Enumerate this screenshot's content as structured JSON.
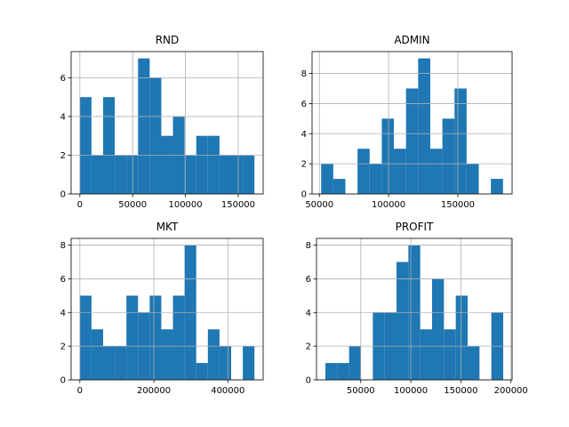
{
  "chart_data": [
    {
      "type": "histogram",
      "title": "RND",
      "color": "#1f77b4",
      "grid": true,
      "bins": [
        0,
        11023,
        22047,
        33070,
        44093,
        55116,
        66140,
        77163,
        88186,
        99209,
        110233,
        121256,
        132279,
        143302,
        154326,
        165349
      ],
      "values": [
        5,
        2,
        5,
        2,
        2,
        7,
        6,
        3,
        4,
        2,
        3,
        3,
        2,
        2,
        2
      ],
      "xlim": [
        -8267,
        173617
      ],
      "xticks": [
        0,
        50000,
        100000,
        150000
      ],
      "ylim": [
        0,
        7.35
      ],
      "yticks": [
        0,
        2,
        4,
        6
      ]
    },
    {
      "type": "histogram",
      "title": "ADMIN",
      "color": "#1f77b4",
      "grid": true,
      "bins": [
        51283,
        60041,
        68798,
        77556,
        86313,
        95071,
        103828,
        112586,
        121343,
        130101,
        138858,
        147616,
        156373,
        165131,
        173888,
        182646
      ],
      "values": [
        2,
        1,
        0,
        3,
        2,
        5,
        3,
        7,
        9,
        3,
        5,
        7,
        2,
        0,
        1
      ],
      "xlim": [
        44715,
        189214
      ],
      "xticks": [
        50000,
        100000,
        150000
      ],
      "ylim": [
        0,
        9.45
      ],
      "yticks": [
        0,
        2,
        4,
        6,
        8
      ]
    },
    {
      "type": "histogram",
      "title": "MKT",
      "color": "#1f77b4",
      "grid": true,
      "bins": [
        0,
        31452,
        62905,
        94357,
        125809,
        157262,
        188714,
        220166,
        251618,
        283071,
        314523,
        345975,
        377428,
        408880,
        440332,
        471784
      ],
      "values": [
        5,
        3,
        2,
        2,
        5,
        4,
        5,
        3,
        5,
        8,
        1,
        3,
        2,
        0,
        2
      ],
      "xlim": [
        -23589,
        495373
      ],
      "xticks": [
        0,
        200000,
        400000
      ],
      "ylim": [
        0,
        8.4
      ],
      "yticks": [
        0,
        2,
        4,
        6,
        8
      ]
    },
    {
      "type": "histogram",
      "title": "PROFIT",
      "color": "#1f77b4",
      "grid": true,
      "bins": [
        14681,
        26520,
        38358,
        50197,
        62036,
        73875,
        85713,
        97552,
        109391,
        121229,
        133068,
        144907,
        156746,
        168584,
        180423,
        192262
      ],
      "values": [
        1,
        1,
        2,
        0,
        4,
        4,
        7,
        8,
        3,
        6,
        3,
        5,
        2,
        0,
        4
      ],
      "xlim": [
        5802,
        201141
      ],
      "xticks": [
        50000,
        100000,
        150000,
        200000
      ],
      "ylim": [
        0,
        8.4
      ],
      "yticks": [
        0,
        2,
        4,
        6,
        8
      ]
    }
  ]
}
